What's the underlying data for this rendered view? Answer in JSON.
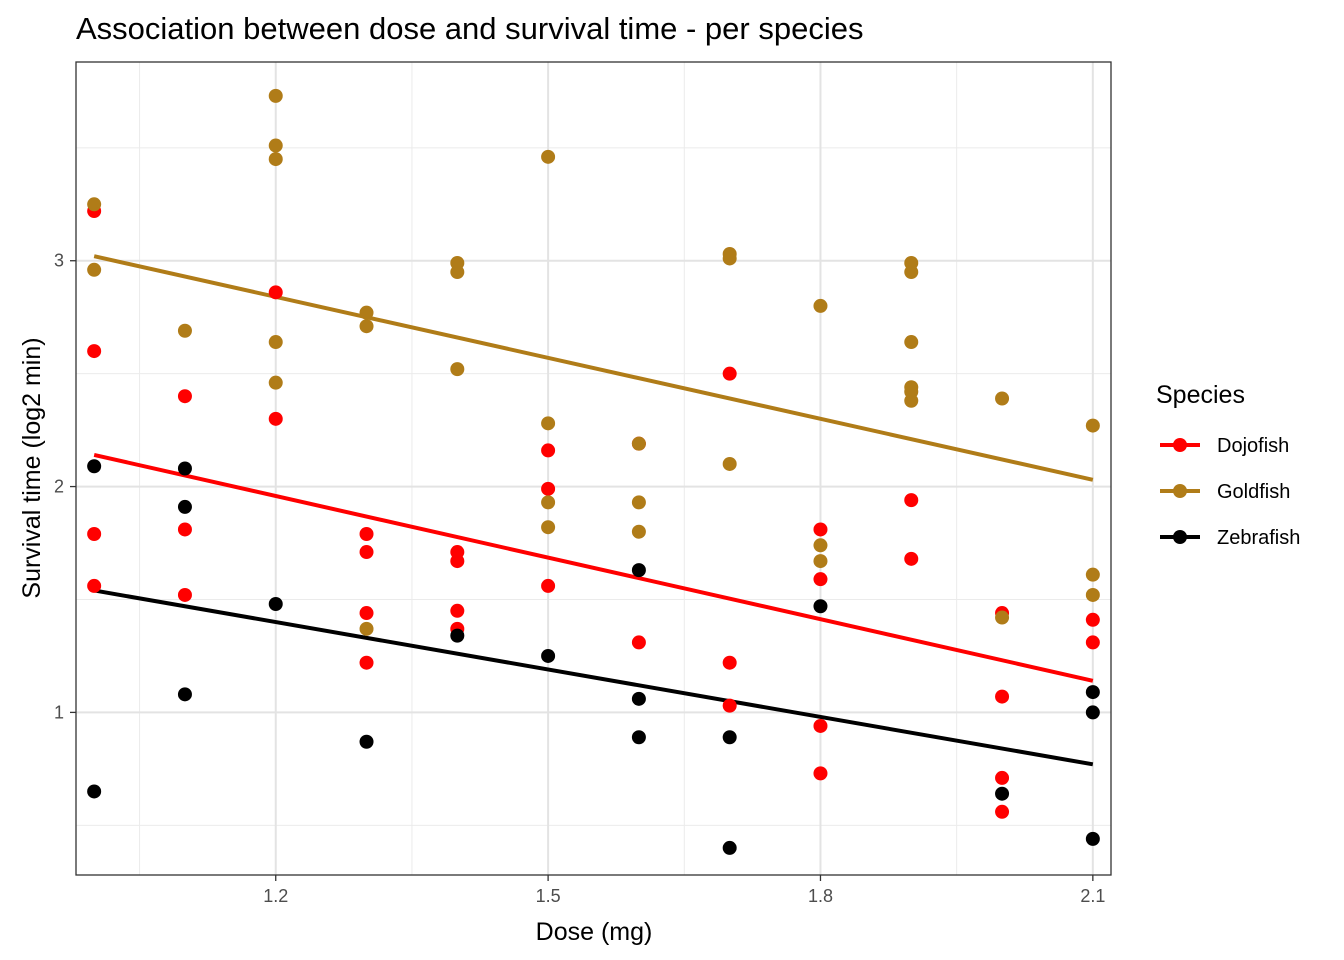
{
  "chart_data": {
    "type": "scatter",
    "title": "Association between dose and survival time - per species",
    "xlabel": "Dose (mg)",
    "ylabel": "Survival time (log2 min)",
    "xlim": [
      0.98,
      2.12
    ],
    "ylim": [
      0.28,
      3.88
    ],
    "x_ticks": [
      1.2,
      1.5,
      1.8,
      2.1
    ],
    "y_ticks": [
      1,
      2,
      3
    ],
    "x_tick_labels": [
      "1.2",
      "1.5",
      "1.8",
      "2.1"
    ],
    "y_tick_labels": [
      "1",
      "2",
      "3"
    ],
    "grid": true,
    "legend": {
      "title": "Species",
      "position": "right"
    },
    "series": [
      {
        "name": "Dojofish",
        "color": "#ff0000",
        "points": [
          [
            1.0,
            3.22
          ],
          [
            1.0,
            2.6
          ],
          [
            1.0,
            1.79
          ],
          [
            1.0,
            1.56
          ],
          [
            1.1,
            2.4
          ],
          [
            1.1,
            1.81
          ],
          [
            1.1,
            1.52
          ],
          [
            1.2,
            2.86
          ],
          [
            1.2,
            2.3
          ],
          [
            1.3,
            1.79
          ],
          [
            1.3,
            1.71
          ],
          [
            1.3,
            1.44
          ],
          [
            1.3,
            1.22
          ],
          [
            1.4,
            1.71
          ],
          [
            1.4,
            1.67
          ],
          [
            1.4,
            1.45
          ],
          [
            1.4,
            1.37
          ],
          [
            1.5,
            2.16
          ],
          [
            1.5,
            1.99
          ],
          [
            1.5,
            1.56
          ],
          [
            1.6,
            2.19
          ],
          [
            1.6,
            1.31
          ],
          [
            1.7,
            2.5
          ],
          [
            1.7,
            1.22
          ],
          [
            1.7,
            1.03
          ],
          [
            1.8,
            1.81
          ],
          [
            1.8,
            1.59
          ],
          [
            1.8,
            0.94
          ],
          [
            1.8,
            0.73
          ],
          [
            1.9,
            1.94
          ],
          [
            1.9,
            1.68
          ],
          [
            2.0,
            1.44
          ],
          [
            2.0,
            1.07
          ],
          [
            2.0,
            0.71
          ],
          [
            2.0,
            0.56
          ],
          [
            2.1,
            1.41
          ],
          [
            2.1,
            1.31
          ]
        ],
        "fit": [
          [
            1.0,
            2.14
          ],
          [
            2.1,
            1.14
          ]
        ]
      },
      {
        "name": "Goldfish",
        "color": "#b07c18",
        "points": [
          [
            1.0,
            3.25
          ],
          [
            1.0,
            2.96
          ],
          [
            1.1,
            2.69
          ],
          [
            1.2,
            3.73
          ],
          [
            1.2,
            3.51
          ],
          [
            1.2,
            3.45
          ],
          [
            1.2,
            2.64
          ],
          [
            1.2,
            2.46
          ],
          [
            1.3,
            2.77
          ],
          [
            1.3,
            2.71
          ],
          [
            1.3,
            1.37
          ],
          [
            1.4,
            2.99
          ],
          [
            1.4,
            2.95
          ],
          [
            1.4,
            2.52
          ],
          [
            1.5,
            3.46
          ],
          [
            1.5,
            2.28
          ],
          [
            1.5,
            1.93
          ],
          [
            1.5,
            1.82
          ],
          [
            1.6,
            2.19
          ],
          [
            1.6,
            1.93
          ],
          [
            1.6,
            1.8
          ],
          [
            1.7,
            3.03
          ],
          [
            1.7,
            3.01
          ],
          [
            1.7,
            2.1
          ],
          [
            1.8,
            2.8
          ],
          [
            1.8,
            1.74
          ],
          [
            1.8,
            1.67
          ],
          [
            1.9,
            2.99
          ],
          [
            1.9,
            2.95
          ],
          [
            1.9,
            2.64
          ],
          [
            1.9,
            2.44
          ],
          [
            1.9,
            2.42
          ],
          [
            1.9,
            2.38
          ],
          [
            2.0,
            2.39
          ],
          [
            2.0,
            1.42
          ],
          [
            2.1,
            2.27
          ],
          [
            2.1,
            1.61
          ],
          [
            2.1,
            1.52
          ]
        ],
        "fit": [
          [
            1.0,
            3.02
          ],
          [
            2.1,
            2.03
          ]
        ]
      },
      {
        "name": "Zebrafish",
        "color": "#000000",
        "points": [
          [
            1.0,
            2.09
          ],
          [
            1.0,
            0.65
          ],
          [
            1.1,
            2.08
          ],
          [
            1.1,
            1.91
          ],
          [
            1.1,
            1.08
          ],
          [
            1.2,
            1.48
          ],
          [
            1.3,
            0.87
          ],
          [
            1.4,
            1.34
          ],
          [
            1.5,
            1.25
          ],
          [
            1.6,
            1.63
          ],
          [
            1.6,
            1.06
          ],
          [
            1.6,
            0.89
          ],
          [
            1.7,
            0.89
          ],
          [
            1.7,
            0.4
          ],
          [
            1.8,
            1.47
          ],
          [
            2.0,
            0.64
          ],
          [
            2.1,
            1.09
          ],
          [
            2.1,
            1.0
          ],
          [
            2.1,
            0.44
          ]
        ],
        "fit": [
          [
            1.0,
            1.54
          ],
          [
            2.1,
            0.77
          ]
        ]
      }
    ]
  }
}
